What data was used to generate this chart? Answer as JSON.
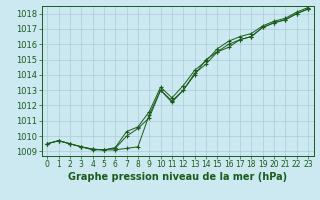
{
  "title": "Graphe pression niveau de la mer (hPa)",
  "bg_color": "#cce8f0",
  "grid_color": "#aaccd8",
  "line_color": "#1a5c1a",
  "x_values": [
    0,
    1,
    2,
    3,
    4,
    5,
    6,
    7,
    8,
    9,
    10,
    11,
    12,
    13,
    14,
    15,
    16,
    17,
    18,
    19,
    20,
    21,
    22,
    23
  ],
  "line1": [
    1009.5,
    1009.7,
    1009.5,
    1009.3,
    1009.1,
    1009.1,
    1009.1,
    1009.2,
    1009.3,
    1011.4,
    1013.0,
    1012.3,
    1013.0,
    1014.0,
    1015.0,
    1015.5,
    1015.8,
    1016.3,
    1016.5,
    1017.1,
    1017.4,
    1017.6,
    1018.0,
    1018.3
  ],
  "line2": [
    1009.5,
    1009.7,
    1009.5,
    1009.3,
    1009.15,
    1009.1,
    1009.2,
    1010.0,
    1010.5,
    1011.2,
    1013.0,
    1012.2,
    1013.0,
    1014.1,
    1014.7,
    1015.5,
    1016.0,
    1016.3,
    1016.5,
    1017.1,
    1017.4,
    1017.6,
    1018.0,
    1018.3
  ],
  "line3": [
    1009.5,
    1009.7,
    1009.5,
    1009.3,
    1009.15,
    1009.1,
    1009.25,
    1010.3,
    1010.6,
    1011.6,
    1013.2,
    1012.5,
    1013.3,
    1014.3,
    1014.9,
    1015.7,
    1016.2,
    1016.5,
    1016.7,
    1017.2,
    1017.5,
    1017.7,
    1018.1,
    1018.4
  ],
  "ylim": [
    1008.7,
    1018.5
  ],
  "yticks": [
    1009,
    1010,
    1011,
    1012,
    1013,
    1014,
    1015,
    1016,
    1017,
    1018
  ],
  "xlim": [
    -0.5,
    23.5
  ],
  "xlabel_fontsize": 7,
  "tick_fontsize": 6,
  "label_color": "#1a5c1a"
}
